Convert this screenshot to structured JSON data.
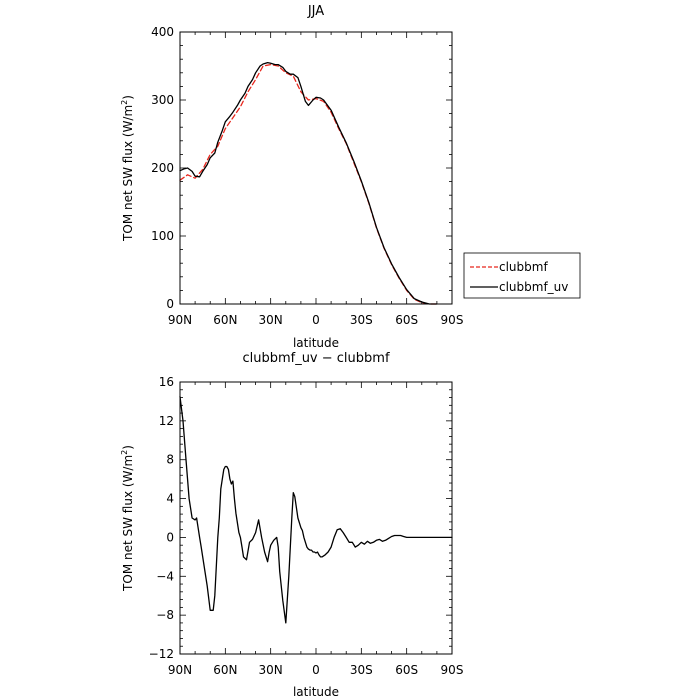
{
  "chart_data": [
    {
      "type": "line",
      "title": "JJA",
      "xlabel": "latitude",
      "ylabel": "TOM net SW flux (W/m",
      "ylabel_sup": "2",
      "ylabel_close": ")",
      "xlim": [
        90,
        -90
      ],
      "ylim": [
        0,
        400
      ],
      "x_ticks": [
        90,
        60,
        30,
        0,
        -30,
        -60,
        -90
      ],
      "x_tick_labels": [
        "90N",
        "60N",
        "30N",
        "0",
        "30S",
        "60S",
        "90S"
      ],
      "y_ticks": [
        0,
        100,
        200,
        300,
        400
      ],
      "y_tick_labels": [
        "0",
        "100",
        "200",
        "300",
        "400"
      ],
      "grid": false,
      "legend": "right",
      "series": [
        {
          "name": "clubbmf",
          "color": "#e8261c",
          "dash": "dashed",
          "x": [
            90,
            85,
            80,
            75,
            70,
            65,
            60,
            55,
            50,
            45,
            40,
            35,
            30,
            25,
            20,
            15,
            10,
            5,
            0,
            -5,
            -10,
            -15,
            -20,
            -25,
            -30,
            -35,
            -40,
            -45,
            -50,
            -55,
            -60,
            -65,
            -70,
            -75,
            -80
          ],
          "y": [
            182,
            190,
            185,
            198,
            220,
            232,
            258,
            274,
            290,
            312,
            330,
            350,
            352,
            350,
            340,
            335,
            312,
            300,
            302,
            298,
            282,
            258,
            236,
            208,
            180,
            148,
            112,
            82,
            58,
            38,
            20,
            7,
            2,
            0,
            0
          ]
        },
        {
          "name": "clubbmf_uv",
          "color": "#000000",
          "dash": "solid",
          "x": [
            90,
            87,
            85,
            82,
            80,
            77,
            75,
            72,
            70,
            67,
            65,
            62,
            60,
            57,
            55,
            52,
            50,
            47,
            45,
            42,
            40,
            37,
            35,
            32,
            30,
            27,
            25,
            22,
            20,
            17,
            15,
            12,
            10,
            7,
            5,
            2,
            0,
            -3,
            -5,
            -10,
            -15,
            -20,
            -25,
            -30,
            -35,
            -40,
            -45,
            -50,
            -55,
            -60,
            -65,
            -70,
            -75,
            -80
          ],
          "y": [
            196,
            199,
            200,
            195,
            188,
            187,
            195,
            205,
            215,
            222,
            238,
            255,
            268,
            276,
            282,
            292,
            300,
            310,
            320,
            330,
            340,
            350,
            353,
            355,
            354,
            352,
            352,
            348,
            342,
            338,
            338,
            333,
            320,
            298,
            292,
            300,
            304,
            303,
            300,
            285,
            260,
            237,
            210,
            181,
            149,
            113,
            83,
            59,
            39,
            21,
            8,
            3,
            0,
            0
          ]
        }
      ]
    },
    {
      "type": "line",
      "title": "clubbmf_uv − clubbmf",
      "xlabel": "latitude",
      "ylabel": "TOM net SW flux (W/m",
      "ylabel_sup": "2",
      "ylabel_close": ")",
      "xlim": [
        90,
        -90
      ],
      "ylim": [
        -12,
        16
      ],
      "x_ticks": [
        90,
        60,
        30,
        0,
        -30,
        -60,
        -90
      ],
      "x_tick_labels": [
        "90N",
        "60N",
        "30N",
        "0",
        "30S",
        "60S",
        "90S"
      ],
      "y_ticks": [
        -12,
        -8,
        -4,
        0,
        4,
        8,
        12,
        16
      ],
      "y_tick_labels": [
        "−12",
        "−8",
        "−4",
        "0",
        "4",
        "8",
        "12",
        "16"
      ],
      "grid": false,
      "series": [
        {
          "color": "#000000",
          "dash": "solid",
          "x": [
            90,
            88,
            86,
            84,
            82,
            80,
            79,
            78,
            77,
            76,
            75,
            74,
            72,
            70,
            68,
            67,
            66,
            65,
            64,
            63,
            61,
            60,
            59,
            58,
            57,
            56,
            55,
            54,
            53,
            51,
            50,
            49,
            48,
            46,
            44,
            42,
            40,
            38,
            36,
            34,
            32,
            31,
            30,
            28,
            26,
            25,
            24,
            22,
            20,
            18,
            17,
            16,
            15,
            14,
            12,
            10,
            9,
            8,
            7,
            6,
            5,
            4,
            3,
            2,
            1,
            0,
            -1,
            -2,
            -3,
            -4,
            -6,
            -8,
            -10,
            -12,
            -14,
            -16,
            -18,
            -20,
            -22,
            -24,
            -26,
            -28,
            -30,
            -32,
            -34,
            -36,
            -38,
            -40,
            -42,
            -44,
            -46,
            -48,
            -50,
            -52,
            -54,
            -56,
            -58,
            -60,
            -62,
            -64,
            -66,
            -70,
            -75,
            -80,
            -85,
            -90
          ],
          "y": [
            14.5,
            12.0,
            8.0,
            4.0,
            2.0,
            1.8,
            2.0,
            1.0,
            0.0,
            -1.0,
            -2.0,
            -3.0,
            -5.0,
            -7.5,
            -7.5,
            -6.0,
            -3.0,
            0.0,
            2.0,
            5.0,
            7.0,
            7.3,
            7.3,
            7.0,
            6.0,
            5.5,
            5.8,
            4.0,
            2.5,
            0.5,
            0.0,
            -1.0,
            -2.0,
            -2.3,
            -0.5,
            -0.2,
            0.5,
            1.8,
            0.0,
            -1.5,
            -2.5,
            -1.5,
            -0.8,
            -0.3,
            0.0,
            -1.0,
            -3.5,
            -6.5,
            -8.8,
            -4.0,
            -1.0,
            2.0,
            4.6,
            4.2,
            2.0,
            1.0,
            0.7,
            0.0,
            -0.5,
            -1.0,
            -1.2,
            -1.3,
            -1.3,
            -1.5,
            -1.5,
            -1.6,
            -1.5,
            -1.8,
            -2.0,
            -2.0,
            -1.8,
            -1.5,
            -1.0,
            0.0,
            0.8,
            0.9,
            0.5,
            0.0,
            -0.5,
            -0.5,
            -1.0,
            -0.8,
            -0.5,
            -0.7,
            -0.4,
            -0.6,
            -0.5,
            -0.3,
            -0.2,
            -0.4,
            -0.3,
            -0.1,
            0.1,
            0.2,
            0.2,
            0.2,
            0.1,
            0.0,
            0.0,
            0.0,
            0.0,
            0.0,
            0.0,
            0.0,
            0.0,
            0.0
          ]
        }
      ]
    }
  ]
}
